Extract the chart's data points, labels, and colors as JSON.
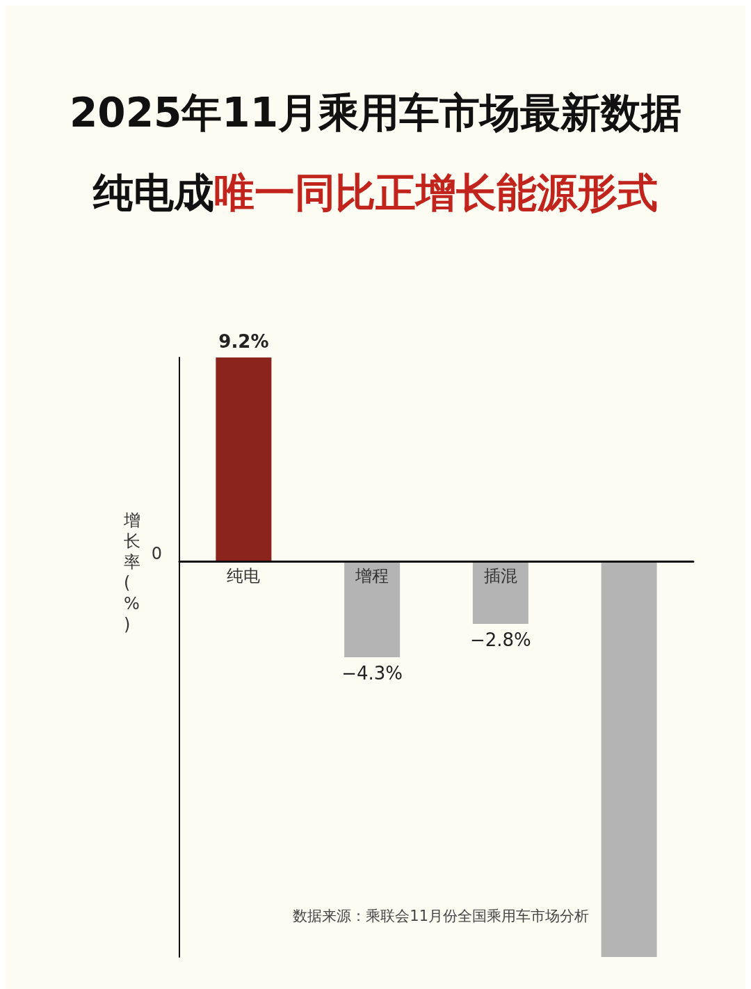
{
  "chart_data": {
    "type": "bar",
    "title": "2025年11月乘用车市场最新数据",
    "subtitle": "纯电成唯一同比正增长能源形式",
    "ylabel": "增长率(%)",
    "categories": [
      "纯电",
      "增程",
      "插混",
      null
    ],
    "values": [
      9.2,
      -4.3,
      -2.8,
      -17.8
    ],
    "colors": [
      "#8b241c",
      "#b4b4b4",
      "#b4b4b4",
      "#b4b4b4"
    ],
    "value_labels": [
      "9.2%",
      "−4.3%",
      "−2.8%",
      null
    ],
    "annotations": [
      "数据来源：乘联会11月份全国乘用车市场分析",
      "0"
    ],
    "grid": false
  }
}
